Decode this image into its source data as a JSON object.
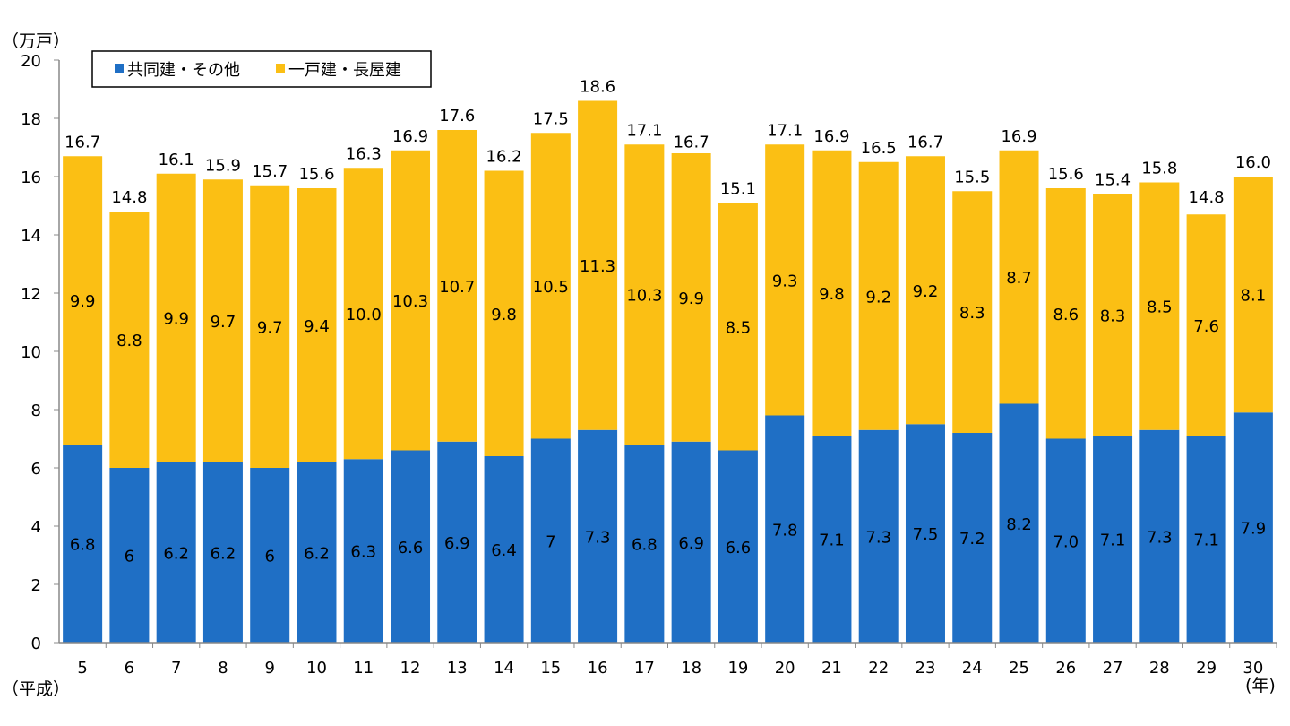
{
  "chart_data": {
    "type": "bar",
    "stacked": true,
    "ylabel": "（万戸）",
    "xlabel_left": "（平成）",
    "xlabel_right": "(年)",
    "ylim": [
      0,
      20
    ],
    "yticks": [
      0,
      2,
      4,
      6,
      8,
      10,
      12,
      14,
      16,
      18,
      20
    ],
    "grid": false,
    "legend_position": "top-left",
    "categories": [
      "5",
      "6",
      "7",
      "8",
      "9",
      "10",
      "11",
      "12",
      "13",
      "14",
      "15",
      "16",
      "17",
      "18",
      "19",
      "20",
      "21",
      "22",
      "23",
      "24",
      "25",
      "26",
      "27",
      "28",
      "29",
      "30"
    ],
    "series": [
      {
        "name": "共同建・その他",
        "color": "#1f6fc5",
        "values": [
          6.8,
          6,
          6.2,
          6.2,
          6,
          6.2,
          6.3,
          6.6,
          6.9,
          6.4,
          7,
          7.3,
          6.8,
          6.9,
          6.6,
          7.8,
          7.1,
          7.3,
          7.5,
          7.2,
          8.2,
          7.0,
          7.1,
          7.3,
          7.1,
          7.9
        ],
        "labels": [
          "6.8",
          "6",
          "6.2",
          "6.2",
          "6",
          "6.2",
          "6.3",
          "6.6",
          "6.9",
          "6.4",
          "7",
          "7.3",
          "6.8",
          "6.9",
          "6.6",
          "7.8",
          "7.1",
          "7.3",
          "7.5",
          "7.2",
          "8.2",
          "7.0",
          "7.1",
          "7.3",
          "7.1",
          "7.9"
        ]
      },
      {
        "name": "一戸建・長屋建",
        "color": "#fbbf14",
        "values": [
          9.9,
          8.8,
          9.9,
          9.7,
          9.7,
          9.4,
          10.0,
          10.3,
          10.7,
          9.8,
          10.5,
          11.3,
          10.3,
          9.9,
          8.5,
          9.3,
          9.8,
          9.2,
          9.2,
          8.3,
          8.7,
          8.6,
          8.3,
          8.5,
          7.6,
          8.1
        ],
        "labels": [
          "9.9",
          "8.8",
          "9.9",
          "9.7",
          "9.7",
          "9.4",
          "10.0",
          "10.3",
          "10.7",
          "9.8",
          "10.5",
          "11.3",
          "10.3",
          "9.9",
          "8.5",
          "9.3",
          "9.8",
          "9.2",
          "9.2",
          "8.3",
          "8.7",
          "8.6",
          "8.3",
          "8.5",
          "7.6",
          "8.1"
        ]
      }
    ],
    "totals": [
      16.7,
      14.8,
      16.1,
      15.9,
      15.7,
      15.6,
      16.3,
      16.9,
      17.6,
      16.2,
      17.5,
      18.6,
      17.1,
      16.7,
      15.1,
      17.1,
      16.9,
      16.5,
      16.7,
      15.5,
      16.9,
      15.6,
      15.4,
      15.8,
      14.8,
      16.0
    ],
    "total_labels": [
      "16.7",
      "14.8",
      "16.1",
      "15.9",
      "15.7",
      "15.6",
      "16.3",
      "16.9",
      "17.6",
      "16.2",
      "17.5",
      "18.6",
      "17.1",
      "16.7",
      "15.1",
      "17.1",
      "16.9",
      "16.5",
      "16.7",
      "15.5",
      "16.9",
      "15.6",
      "15.4",
      "15.8",
      "14.8",
      "16.0"
    ]
  }
}
